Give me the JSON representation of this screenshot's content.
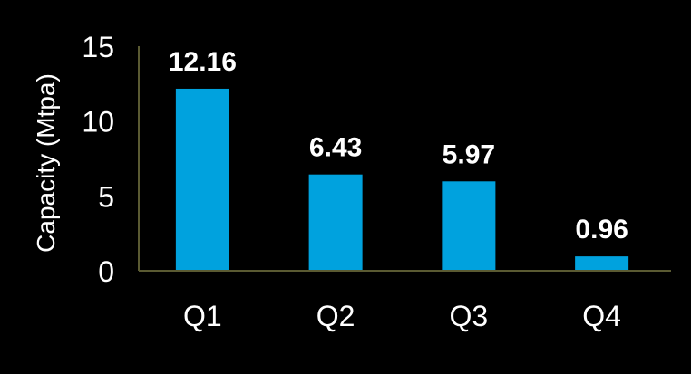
{
  "chart_data": {
    "type": "bar",
    "title": "",
    "xlabel": "",
    "ylabel": "Capacity (Mtpa)",
    "categories": [
      "Q1",
      "Q2",
      "Q3",
      "Q4"
    ],
    "values": [
      12.16,
      6.43,
      5.97,
      0.96
    ],
    "value_labels": [
      "12.16",
      "6.43",
      "5.97",
      "0.96"
    ],
    "ylim": [
      0,
      15
    ],
    "yticks": [
      0,
      5,
      10,
      15
    ],
    "ytick_labels": [
      "0",
      "5",
      "10",
      "15"
    ],
    "grid": false,
    "legend": "none",
    "bar_color": "#00a2de",
    "axis_color": "#5a5a32",
    "background": "#000000",
    "text_color": "#ffffff"
  }
}
